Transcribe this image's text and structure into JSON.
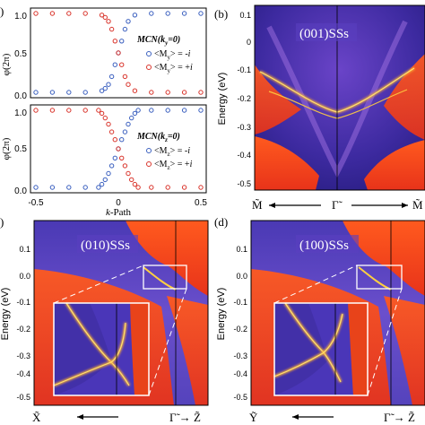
{
  "figure": {
    "panels": {
      "a": {
        "label": ")"
      },
      "b": {
        "label": "(b)",
        "title": "(001)SSs",
        "ylabel": "Energy (eV)",
        "yticks": [
          "0.1",
          "0",
          "-0.1",
          "-0.2",
          "-0.3",
          "-0.4",
          "-0.5"
        ],
        "xlabels": [
          "M̃",
          "Γ̃",
          "M̃"
        ]
      },
      "c": {
        "label": ")",
        "title": "(010)SSs",
        "ylabel": "Energy (eV)",
        "yticks": [
          "0.1",
          "0.0",
          "-0.1",
          "-0.2",
          "-0.3",
          "-0.4",
          "-0.5"
        ],
        "xlabels": [
          "X̃",
          "Γ̃ → Z̃"
        ]
      },
      "d": {
        "label": "(d)",
        "title": "(100)SSs",
        "ylabel": "Energy (eV)",
        "yticks": [
          "0.1",
          "0.0",
          "-0.1",
          "-0.2",
          "-0.3",
          "-0.4",
          "-0.5"
        ],
        "xlabels": [
          "Ỹ",
          "Γ̃ → Z̃"
        ]
      }
    }
  },
  "chart_data": [
    {
      "type": "scatter",
      "panel": "a-top",
      "title": "MCN(k_y=0)",
      "ylabel": "φ(2π)",
      "xlim": [
        -0.5,
        0.5
      ],
      "ylim": [
        0,
        1
      ],
      "yticks": [
        "0.0",
        "0.5",
        "1.0"
      ],
      "legend": [
        "<M_y> = -i",
        "<M_y> = +i"
      ],
      "legend_position": "right",
      "series": [
        {
          "name": "<M_y> = -i",
          "color": "#3a5fbf",
          "x": [
            -0.5,
            -0.4,
            -0.3,
            -0.2,
            -0.1,
            -0.08,
            -0.06,
            -0.04,
            -0.02,
            0,
            0.02,
            0.04,
            0.06,
            0.1,
            0.2,
            0.3,
            0.4,
            0.5
          ],
          "y": [
            0.0,
            0.0,
            0.0,
            0.0,
            0.02,
            0.05,
            0.1,
            0.2,
            0.35,
            0.5,
            0.65,
            0.8,
            0.9,
            0.98,
            1.0,
            1.0,
            1.0,
            1.0
          ]
        },
        {
          "name": "<M_y> = +i",
          "color": "#d9342b",
          "x": [
            -0.5,
            -0.4,
            -0.3,
            -0.2,
            -0.1,
            -0.08,
            -0.06,
            -0.04,
            -0.02,
            0,
            0.02,
            0.04,
            0.06,
            0.1,
            0.2,
            0.3,
            0.4,
            0.5
          ],
          "y": [
            1.0,
            1.0,
            1.0,
            1.0,
            0.98,
            0.95,
            0.9,
            0.8,
            0.65,
            0.5,
            0.35,
            0.2,
            0.1,
            0.02,
            0.0,
            0.0,
            0.0,
            0.0
          ]
        }
      ]
    },
    {
      "type": "scatter",
      "panel": "a-bottom",
      "title": "MCN(k_z=0)",
      "ylabel": "φ(2π)",
      "xlabel": "k-Path",
      "xlim": [
        -0.5,
        0.5
      ],
      "ylim": [
        0,
        1
      ],
      "xticks": [
        "-0.5",
        "0",
        "0.5"
      ],
      "yticks": [
        "0.0",
        "0.5",
        "1.0"
      ],
      "legend": [
        "<M_z> = -i",
        "<M_z> = +i"
      ],
      "legend_position": "right",
      "series": [
        {
          "name": "<M_z> = -i",
          "color": "#3a5fbf",
          "x": [
            -0.5,
            -0.4,
            -0.3,
            -0.2,
            -0.12,
            -0.1,
            -0.08,
            -0.06,
            -0.04,
            -0.02,
            0,
            0.02,
            0.04,
            0.06,
            0.08,
            0.1,
            0.12,
            0.2,
            0.3,
            0.4,
            0.5
          ],
          "y": [
            0.0,
            0.0,
            0.0,
            0.0,
            0.0,
            0.04,
            0.1,
            0.18,
            0.28,
            0.38,
            0.5,
            0.62,
            0.72,
            0.82,
            0.9,
            0.96,
            1.0,
            1.0,
            1.0,
            1.0,
            1.0
          ]
        },
        {
          "name": "<M_z> = +i",
          "color": "#d9342b",
          "x": [
            -0.5,
            -0.4,
            -0.3,
            -0.2,
            -0.12,
            -0.1,
            -0.08,
            -0.06,
            -0.04,
            -0.02,
            0,
            0.02,
            0.04,
            0.06,
            0.08,
            0.1,
            0.12,
            0.2,
            0.3,
            0.4,
            0.5
          ],
          "y": [
            1.0,
            1.0,
            1.0,
            1.0,
            1.0,
            0.96,
            0.9,
            0.82,
            0.72,
            0.62,
            0.5,
            0.38,
            0.28,
            0.18,
            0.1,
            0.04,
            0.0,
            0.0,
            0.0,
            0.0,
            0.0
          ]
        }
      ]
    },
    {
      "type": "heatmap",
      "panel": "b",
      "title": "(001)SSs",
      "ylabel": "Energy (eV)",
      "ylim": [
        -0.53,
        0.12
      ],
      "colors": {
        "low": "#2a1e8a",
        "mid": "#7a4fd0",
        "high": "#ff4a1a",
        "peak": "#ffd040"
      }
    },
    {
      "type": "heatmap",
      "panel": "c",
      "title": "(010)SSs",
      "ylabel": "Energy (eV)",
      "ylim": [
        -0.52,
        0.12
      ]
    },
    {
      "type": "heatmap",
      "panel": "d",
      "title": "(100)SSs",
      "ylabel": "Energy (eV)",
      "ylim": [
        -0.52,
        0.12
      ]
    }
  ]
}
